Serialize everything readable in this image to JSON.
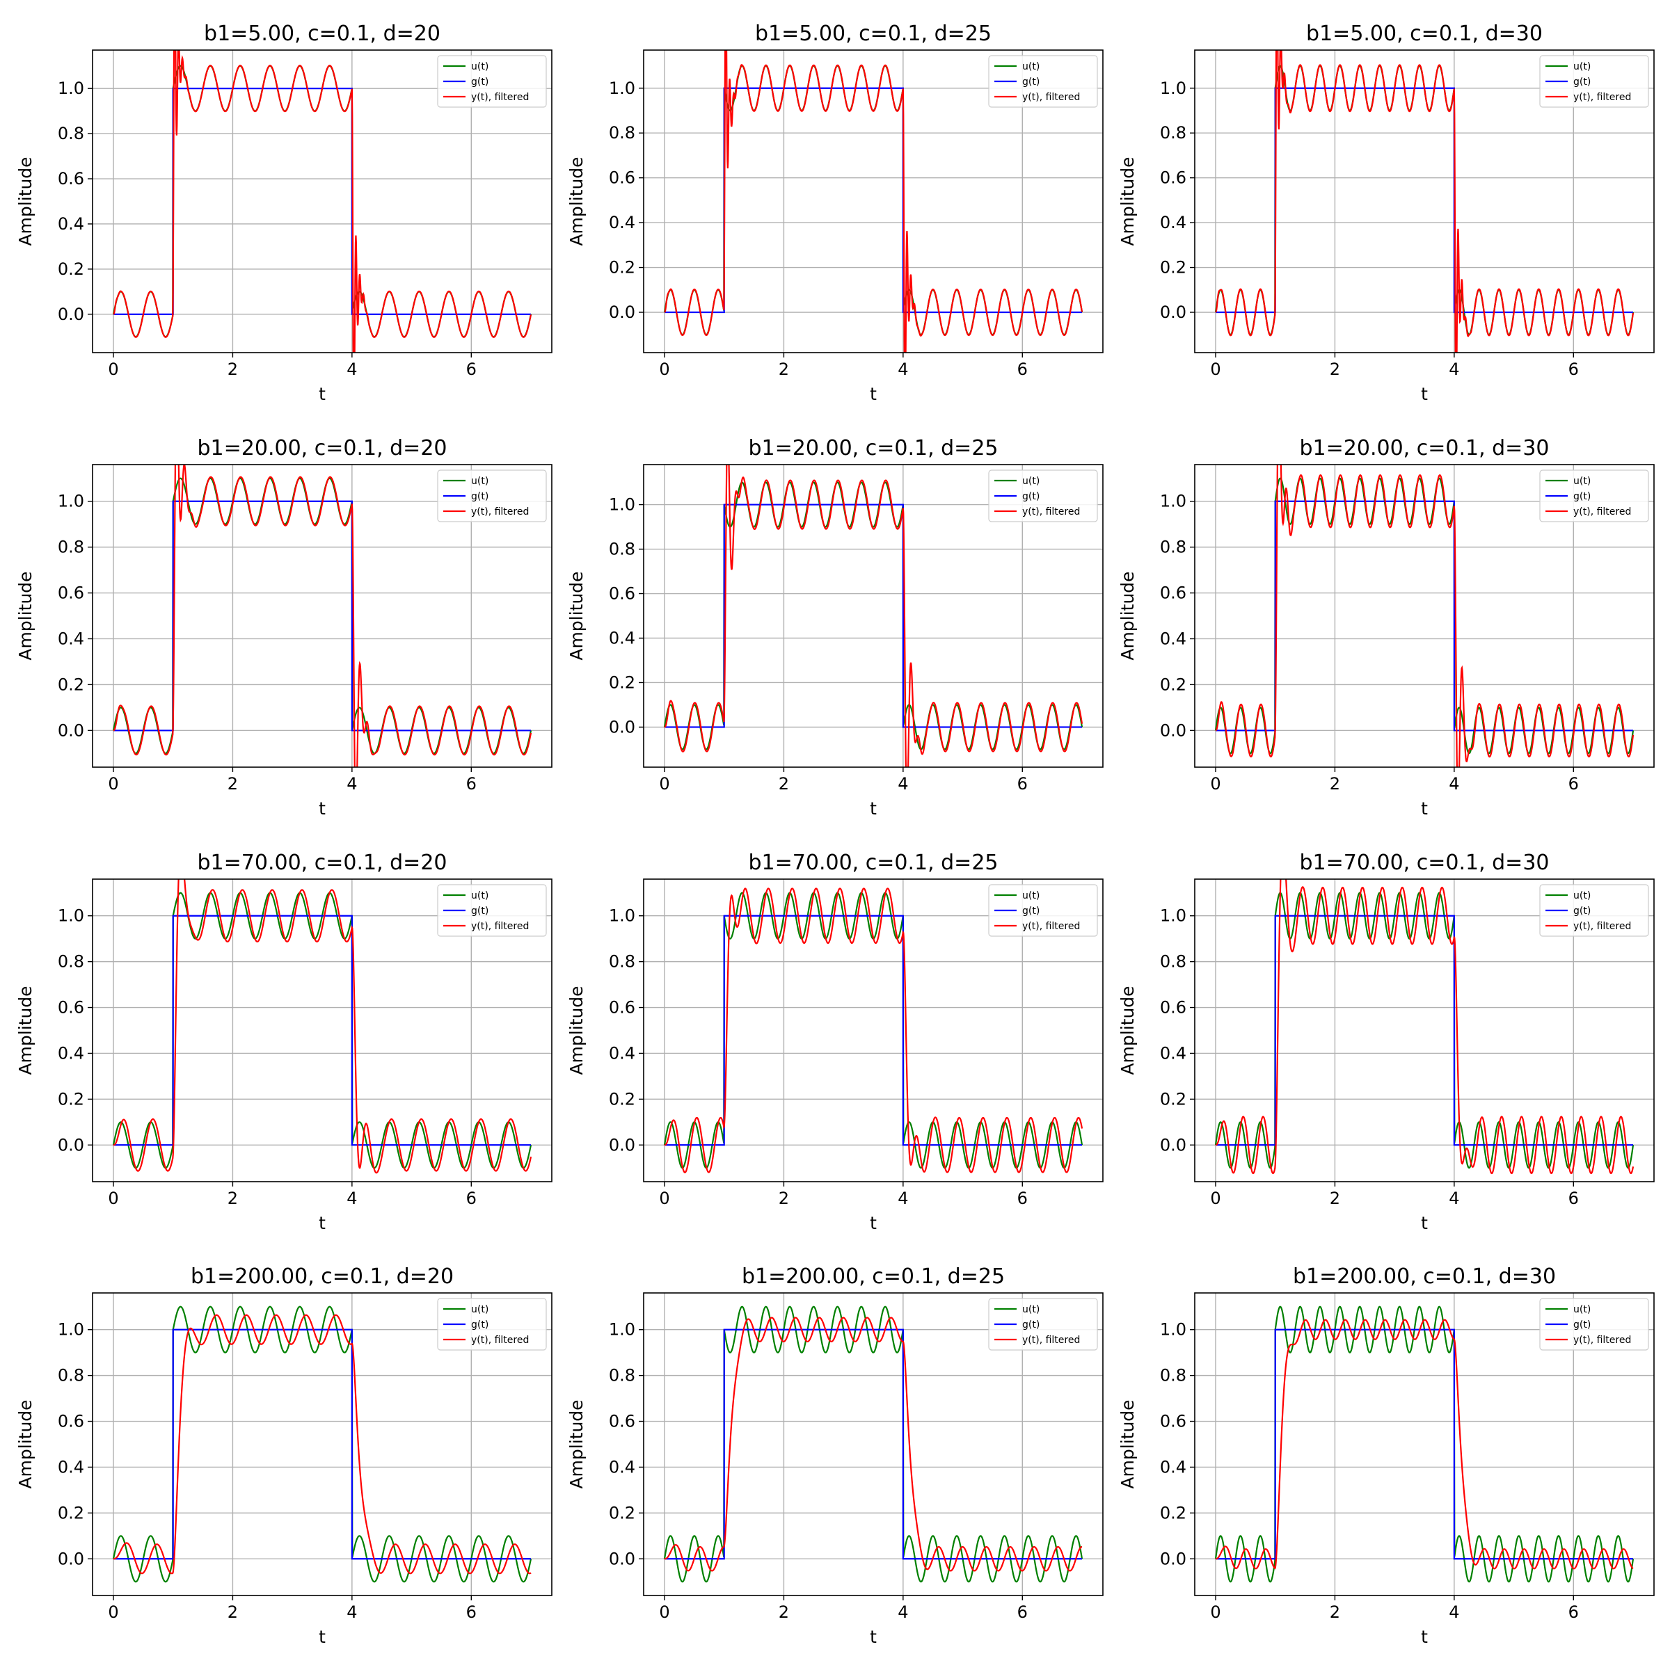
{
  "figure": {
    "grid": true,
    "legend_placement": "top-right",
    "colors": {
      "u": "#008000",
      "g": "#0000ff",
      "y": "#ff0000",
      "grid": "#b0b0b0"
    }
  },
  "chart_data": [
    {
      "type": "line",
      "title": "b1=5.00, c=0.1, d=20",
      "xlabel": "t",
      "ylabel": "Amplitude",
      "xlim": [
        -0.35,
        7.35
      ],
      "ylim": [
        -0.17,
        1.17
      ],
      "xticks": [
        "0",
        "2",
        "4",
        "6"
      ],
      "yticks": [
        "0.0",
        "0.2",
        "0.4",
        "0.6",
        "0.8",
        "1.0"
      ],
      "series": [
        {
          "name": "u(t)",
          "color": "#008000",
          "t_range": [
            0,
            7
          ],
          "pulse": [
            1,
            4
          ],
          "ripple_amp": 0.1,
          "ripple_freq": 20
        },
        {
          "name": "g(t)",
          "color": "#0000ff",
          "t_range": [
            0,
            7
          ],
          "pulse": [
            1,
            4
          ]
        },
        {
          "name": "y(t), filtered",
          "color": "#ff0000",
          "t_range": [
            0,
            7
          ],
          "b1": 5.0,
          "c": 0.1,
          "d": 20
        }
      ]
    },
    {
      "type": "line",
      "title": "b1=5.00, c=0.1, d=25",
      "xlabel": "t",
      "ylabel": "Amplitude",
      "xlim": [
        -0.35,
        7.35
      ],
      "ylim": [
        -0.18,
        1.17
      ],
      "xticks": [
        "0",
        "2",
        "4",
        "6"
      ],
      "yticks": [
        "0.0",
        "0.2",
        "0.4",
        "0.6",
        "0.8",
        "1.0"
      ],
      "series": [
        {
          "name": "u(t)",
          "color": "#008000",
          "t_range": [
            0,
            7
          ],
          "pulse": [
            1,
            4
          ],
          "ripple_amp": 0.1,
          "ripple_freq": 25
        },
        {
          "name": "g(t)",
          "color": "#0000ff",
          "t_range": [
            0,
            7
          ],
          "pulse": [
            1,
            4
          ]
        },
        {
          "name": "y(t), filtered",
          "color": "#ff0000",
          "t_range": [
            0,
            7
          ],
          "b1": 5.0,
          "c": 0.1,
          "d": 25
        }
      ]
    },
    {
      "type": "line",
      "title": "b1=5.00, c=0.1, d=30",
      "xlabel": "t",
      "ylabel": "Amplitude",
      "xlim": [
        -0.35,
        7.35
      ],
      "ylim": [
        -0.18,
        1.17
      ],
      "xticks": [
        "0",
        "2",
        "4",
        "6"
      ],
      "yticks": [
        "0.0",
        "0.2",
        "0.4",
        "0.6",
        "0.8",
        "1.0"
      ],
      "series": [
        {
          "name": "u(t)",
          "color": "#008000",
          "t_range": [
            0,
            7
          ],
          "pulse": [
            1,
            4
          ],
          "ripple_amp": 0.1,
          "ripple_freq": 30
        },
        {
          "name": "g(t)",
          "color": "#0000ff",
          "t_range": [
            0,
            7
          ],
          "pulse": [
            1,
            4
          ]
        },
        {
          "name": "y(t), filtered",
          "color": "#ff0000",
          "t_range": [
            0,
            7
          ],
          "b1": 5.0,
          "c": 0.1,
          "d": 30
        }
      ]
    },
    {
      "type": "line",
      "title": "b1=20.00, c=0.1, d=20",
      "xlabel": "t",
      "ylabel": "Amplitude",
      "xlim": [
        -0.35,
        7.35
      ],
      "ylim": [
        -0.16,
        1.16
      ],
      "xticks": [
        "0",
        "2",
        "4",
        "6"
      ],
      "yticks": [
        "0.0",
        "0.2",
        "0.4",
        "0.6",
        "0.8",
        "1.0"
      ],
      "series": [
        {
          "name": "u(t)",
          "color": "#008000",
          "t_range": [
            0,
            7
          ],
          "pulse": [
            1,
            4
          ],
          "ripple_amp": 0.1,
          "ripple_freq": 20
        },
        {
          "name": "g(t)",
          "color": "#0000ff",
          "t_range": [
            0,
            7
          ],
          "pulse": [
            1,
            4
          ]
        },
        {
          "name": "y(t), filtered",
          "color": "#ff0000",
          "t_range": [
            0,
            7
          ],
          "b1": 20.0,
          "c": 0.1,
          "d": 20
        }
      ]
    },
    {
      "type": "line",
      "title": "b1=20.00, c=0.1, d=25",
      "xlabel": "t",
      "ylabel": "Amplitude",
      "xlim": [
        -0.35,
        7.35
      ],
      "ylim": [
        -0.18,
        1.18
      ],
      "xticks": [
        "0",
        "2",
        "4",
        "6"
      ],
      "yticks": [
        "0.0",
        "0.2",
        "0.4",
        "0.6",
        "0.8",
        "1.0"
      ],
      "series": [
        {
          "name": "u(t)",
          "color": "#008000",
          "t_range": [
            0,
            7
          ],
          "pulse": [
            1,
            4
          ],
          "ripple_amp": 0.1,
          "ripple_freq": 25
        },
        {
          "name": "g(t)",
          "color": "#0000ff",
          "t_range": [
            0,
            7
          ],
          "pulse": [
            1,
            4
          ]
        },
        {
          "name": "y(t), filtered",
          "color": "#ff0000",
          "t_range": [
            0,
            7
          ],
          "b1": 20.0,
          "c": 0.1,
          "d": 25
        }
      ]
    },
    {
      "type": "line",
      "title": "b1=20.00, c=0.1, d=30",
      "xlabel": "t",
      "ylabel": "Amplitude",
      "xlim": [
        -0.35,
        7.35
      ],
      "ylim": [
        -0.16,
        1.16
      ],
      "xticks": [
        "0",
        "2",
        "4",
        "6"
      ],
      "yticks": [
        "0.0",
        "0.2",
        "0.4",
        "0.6",
        "0.8",
        "1.0"
      ],
      "series": [
        {
          "name": "u(t)",
          "color": "#008000",
          "t_range": [
            0,
            7
          ],
          "pulse": [
            1,
            4
          ],
          "ripple_amp": 0.1,
          "ripple_freq": 30
        },
        {
          "name": "g(t)",
          "color": "#0000ff",
          "t_range": [
            0,
            7
          ],
          "pulse": [
            1,
            4
          ]
        },
        {
          "name": "y(t), filtered",
          "color": "#ff0000",
          "t_range": [
            0,
            7
          ],
          "b1": 20.0,
          "c": 0.1,
          "d": 30
        }
      ]
    },
    {
      "type": "line",
      "title": "b1=70.00, c=0.1, d=20",
      "xlabel": "t",
      "ylabel": "Amplitude",
      "xlim": [
        -0.35,
        7.35
      ],
      "ylim": [
        -0.16,
        1.16
      ],
      "xticks": [
        "0",
        "2",
        "4",
        "6"
      ],
      "yticks": [
        "0.0",
        "0.2",
        "0.4",
        "0.6",
        "0.8",
        "1.0"
      ],
      "series": [
        {
          "name": "u(t)",
          "color": "#008000",
          "t_range": [
            0,
            7
          ],
          "pulse": [
            1,
            4
          ],
          "ripple_amp": 0.1,
          "ripple_freq": 20
        },
        {
          "name": "g(t)",
          "color": "#0000ff",
          "t_range": [
            0,
            7
          ],
          "pulse": [
            1,
            4
          ]
        },
        {
          "name": "y(t), filtered",
          "color": "#ff0000",
          "t_range": [
            0,
            7
          ],
          "b1": 70.0,
          "c": 0.1,
          "d": 20
        }
      ]
    },
    {
      "type": "line",
      "title": "b1=70.00, c=0.1, d=25",
      "xlabel": "t",
      "ylabel": "Amplitude",
      "xlim": [
        -0.35,
        7.35
      ],
      "ylim": [
        -0.16,
        1.16
      ],
      "xticks": [
        "0",
        "2",
        "4",
        "6"
      ],
      "yticks": [
        "0.0",
        "0.2",
        "0.4",
        "0.6",
        "0.8",
        "1.0"
      ],
      "series": [
        {
          "name": "u(t)",
          "color": "#008000",
          "t_range": [
            0,
            7
          ],
          "pulse": [
            1,
            4
          ],
          "ripple_amp": 0.1,
          "ripple_freq": 25
        },
        {
          "name": "g(t)",
          "color": "#0000ff",
          "t_range": [
            0,
            7
          ],
          "pulse": [
            1,
            4
          ]
        },
        {
          "name": "y(t), filtered",
          "color": "#ff0000",
          "t_range": [
            0,
            7
          ],
          "b1": 70.0,
          "c": 0.1,
          "d": 25
        }
      ]
    },
    {
      "type": "line",
      "title": "b1=70.00, c=0.1, d=30",
      "xlabel": "t",
      "ylabel": "Amplitude",
      "xlim": [
        -0.35,
        7.35
      ],
      "ylim": [
        -0.16,
        1.16
      ],
      "xticks": [
        "0",
        "2",
        "4",
        "6"
      ],
      "yticks": [
        "0.0",
        "0.2",
        "0.4",
        "0.6",
        "0.8",
        "1.0"
      ],
      "series": [
        {
          "name": "u(t)",
          "color": "#008000",
          "t_range": [
            0,
            7
          ],
          "pulse": [
            1,
            4
          ],
          "ripple_amp": 0.1,
          "ripple_freq": 30
        },
        {
          "name": "g(t)",
          "color": "#0000ff",
          "t_range": [
            0,
            7
          ],
          "pulse": [
            1,
            4
          ]
        },
        {
          "name": "y(t), filtered",
          "color": "#ff0000",
          "t_range": [
            0,
            7
          ],
          "b1": 70.0,
          "c": 0.1,
          "d": 30
        }
      ]
    },
    {
      "type": "line",
      "title": "b1=200.00, c=0.1, d=20",
      "xlabel": "t",
      "ylabel": "Amplitude",
      "xlim": [
        -0.35,
        7.35
      ],
      "ylim": [
        -0.16,
        1.16
      ],
      "xticks": [
        "0",
        "2",
        "4",
        "6"
      ],
      "yticks": [
        "0.0",
        "0.2",
        "0.4",
        "0.6",
        "0.8",
        "1.0"
      ],
      "series": [
        {
          "name": "u(t)",
          "color": "#008000",
          "t_range": [
            0,
            7
          ],
          "pulse": [
            1,
            4
          ],
          "ripple_amp": 0.1,
          "ripple_freq": 20
        },
        {
          "name": "g(t)",
          "color": "#0000ff",
          "t_range": [
            0,
            7
          ],
          "pulse": [
            1,
            4
          ]
        },
        {
          "name": "y(t), filtered",
          "color": "#ff0000",
          "t_range": [
            0,
            7
          ],
          "b1": 200.0,
          "c": 0.1,
          "d": 20
        }
      ]
    },
    {
      "type": "line",
      "title": "b1=200.00, c=0.1, d=25",
      "xlabel": "t",
      "ylabel": "Amplitude",
      "xlim": [
        -0.35,
        7.35
      ],
      "ylim": [
        -0.16,
        1.16
      ],
      "xticks": [
        "0",
        "2",
        "4",
        "6"
      ],
      "yticks": [
        "0.0",
        "0.2",
        "0.4",
        "0.6",
        "0.8",
        "1.0"
      ],
      "series": [
        {
          "name": "u(t)",
          "color": "#008000",
          "t_range": [
            0,
            7
          ],
          "pulse": [
            1,
            4
          ],
          "ripple_amp": 0.1,
          "ripple_freq": 25
        },
        {
          "name": "g(t)",
          "color": "#0000ff",
          "t_range": [
            0,
            7
          ],
          "pulse": [
            1,
            4
          ]
        },
        {
          "name": "y(t), filtered",
          "color": "#ff0000",
          "t_range": [
            0,
            7
          ],
          "b1": 200.0,
          "c": 0.1,
          "d": 25
        }
      ]
    },
    {
      "type": "line",
      "title": "b1=200.00, c=0.1, d=30",
      "xlabel": "t",
      "ylabel": "Amplitude",
      "xlim": [
        -0.35,
        7.35
      ],
      "ylim": [
        -0.16,
        1.16
      ],
      "xticks": [
        "0",
        "2",
        "4",
        "6"
      ],
      "yticks": [
        "0.0",
        "0.2",
        "0.4",
        "0.6",
        "0.8",
        "1.0"
      ],
      "series": [
        {
          "name": "u(t)",
          "color": "#008000",
          "t_range": [
            0,
            7
          ],
          "pulse": [
            1,
            4
          ],
          "ripple_amp": 0.1,
          "ripple_freq": 30
        },
        {
          "name": "g(t)",
          "color": "#0000ff",
          "t_range": [
            0,
            7
          ],
          "pulse": [
            1,
            4
          ]
        },
        {
          "name": "y(t), filtered",
          "color": "#ff0000",
          "t_range": [
            0,
            7
          ],
          "b1": 200.0,
          "c": 0.1,
          "d": 30
        }
      ]
    }
  ]
}
